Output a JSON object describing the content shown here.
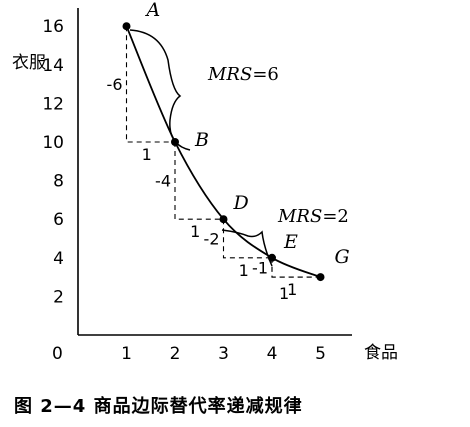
{
  "chart_data": {
    "type": "line",
    "xlabel": "食品",
    "ylabel": "衣服",
    "origin_label": "0",
    "x_ticks": [
      "1",
      "2",
      "3",
      "4",
      "5"
    ],
    "y_ticks": [
      "2",
      "4",
      "6",
      "8",
      "10",
      "12",
      "14",
      "16"
    ],
    "xlim": [
      0,
      5.6
    ],
    "ylim": [
      0,
      16.5
    ],
    "points": [
      {
        "label": "A",
        "x": 1,
        "y": 16
      },
      {
        "label": "B",
        "x": 2,
        "y": 10
      },
      {
        "label": "D",
        "x": 3,
        "y": 6
      },
      {
        "label": "E",
        "x": 4,
        "y": 4
      },
      {
        "label": "G",
        "x": 5,
        "y": 3
      }
    ],
    "steps": [
      {
        "dy_label": "-6",
        "dx_label": "1"
      },
      {
        "dy_label": "-4",
        "dx_label": "1"
      },
      {
        "dy_label": "-2",
        "dx_label": "1"
      },
      {
        "dy_label": "-1",
        "dx_label": "1"
      },
      {
        "dy_label": "",
        "dx_label": "1"
      }
    ],
    "annotations": [
      {
        "prefix": "MRS",
        "value": "=6",
        "between": [
          "A",
          "B"
        ]
      },
      {
        "prefix": "MRS",
        "value": "=2",
        "between": [
          "D",
          "E"
        ]
      }
    ]
  },
  "caption": "图 2—4   商品边际替代率递减规律"
}
